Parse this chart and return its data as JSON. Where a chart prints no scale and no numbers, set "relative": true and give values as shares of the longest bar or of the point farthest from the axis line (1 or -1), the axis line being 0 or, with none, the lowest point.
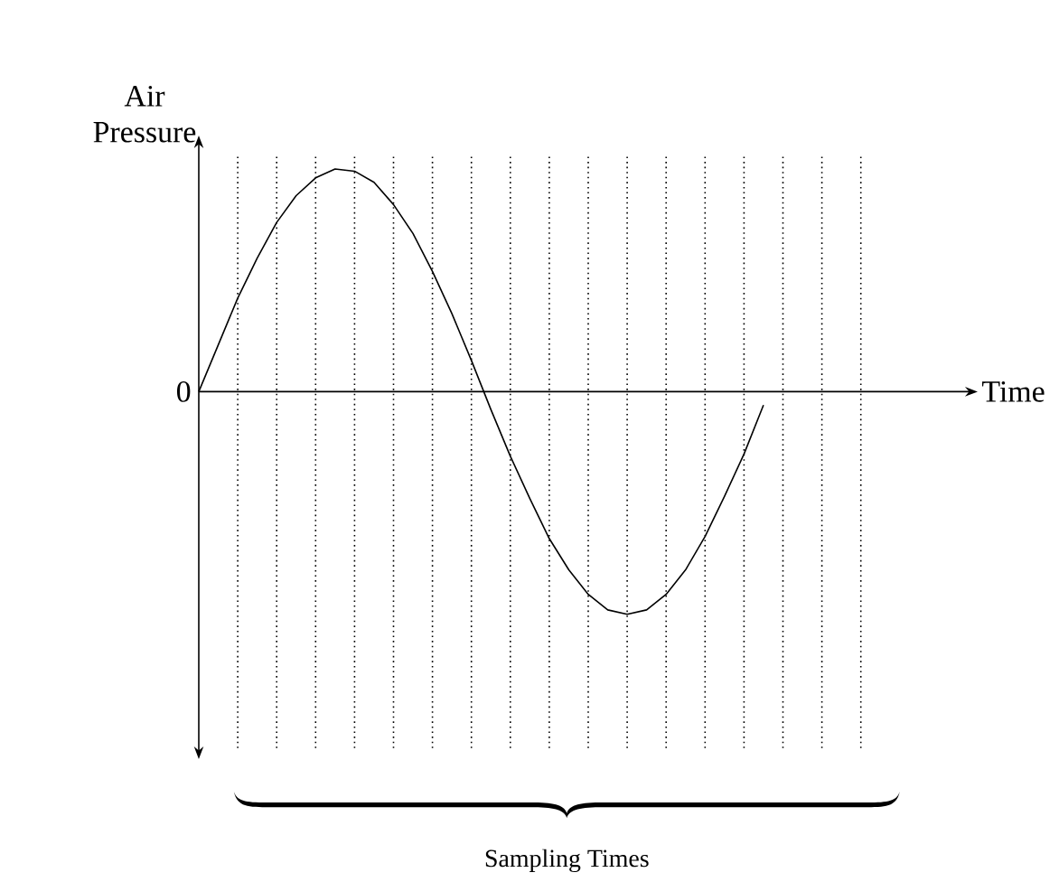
{
  "chart_data": {
    "type": "line",
    "relative": true,
    "grid": "x",
    "xlabel": "Time",
    "ylabel": "Air Pressure",
    "categories": [
      null,
      null,
      null,
      null,
      null,
      null,
      null,
      null,
      null,
      null,
      null,
      null,
      null,
      null,
      null,
      null,
      null,
      null,
      null,
      null,
      null,
      null,
      null,
      null,
      null,
      null,
      null,
      null,
      null,
      null,
      null,
      null,
      null,
      null,
      null,
      null,
      null,
      null,
      null,
      null,
      null
    ],
    "values": [
      0,
      0.21,
      0.42,
      0.6,
      0.76,
      0.88,
      0.96,
      1.0,
      0.99,
      0.94,
      0.84,
      0.71,
      0.54,
      0.35,
      0.14,
      -0.08,
      -0.29,
      -0.48,
      -0.66,
      -0.8,
      -0.91,
      -0.98,
      -1.0,
      -0.98,
      -0.91,
      -0.8,
      -0.65,
      -0.47,
      -0.28,
      -0.06,
      null,
      null,
      null,
      null,
      null,
      null,
      null,
      null,
      null,
      null,
      null
    ],
    "color": "#000000",
    "annotations": [
      "0",
      "Sampling Times"
    ]
  }
}
